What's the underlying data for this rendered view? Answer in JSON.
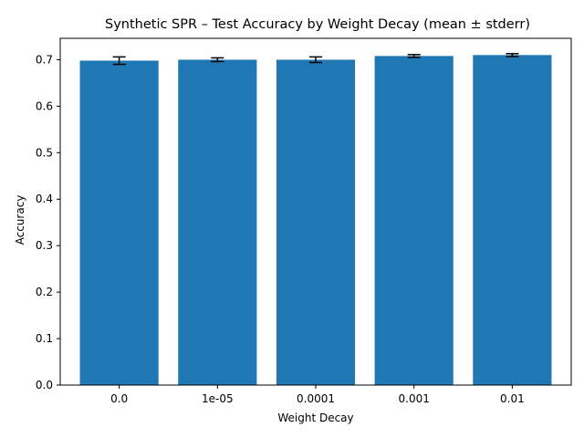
{
  "chart_data": {
    "type": "bar",
    "title": "Synthetic SPR – Test Accuracy by Weight Decay (mean ± stderr)",
    "xlabel": "Weight Decay",
    "ylabel": "Accuracy",
    "categories": [
      "0.0",
      "1e-05",
      "0.0001",
      "0.001",
      "0.01"
    ],
    "values": [
      0.698,
      0.7,
      0.7,
      0.708,
      0.71
    ],
    "errors": [
      0.008,
      0.004,
      0.006,
      0.003,
      0.003
    ],
    "ylim": [
      0,
      0.746
    ],
    "yticks": [
      0.0,
      0.1,
      0.2,
      0.3,
      0.4,
      0.5,
      0.6,
      0.7
    ],
    "ytick_labels": [
      "0.0",
      "0.1",
      "0.2",
      "0.3",
      "0.4",
      "0.5",
      "0.6",
      "0.7"
    ],
    "grid": false,
    "legend": "none",
    "colors": {
      "bar": "#1f77b4",
      "error_bar": "#000000",
      "axes": "#000000"
    }
  }
}
